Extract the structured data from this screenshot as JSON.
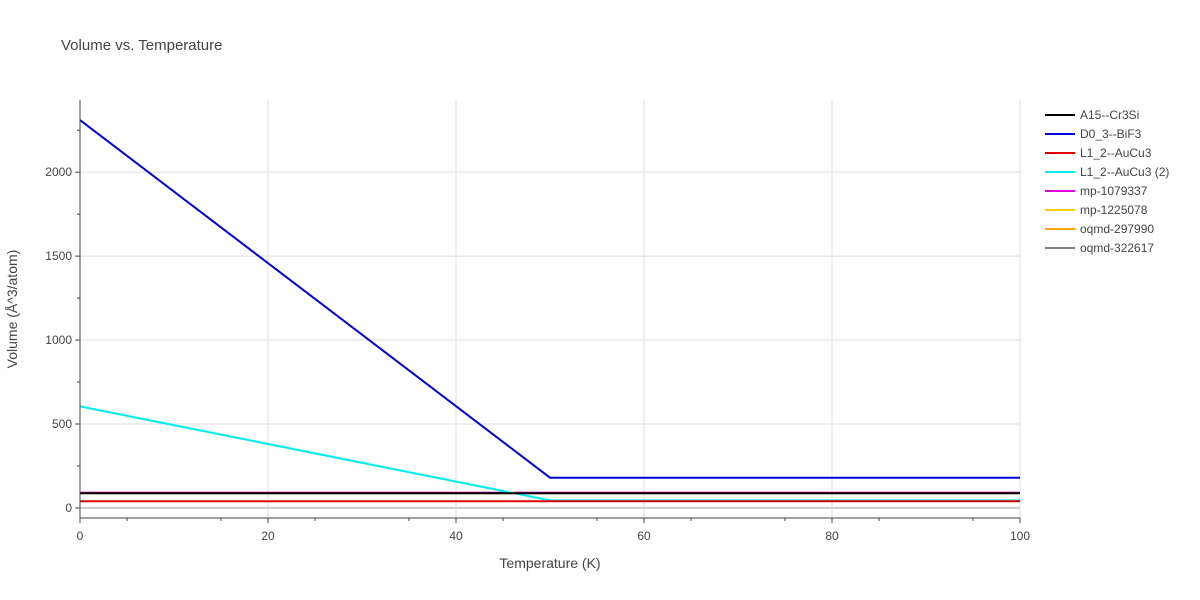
{
  "chart_data": {
    "type": "line",
    "title": "Volume vs. Temperature",
    "xlabel": "Temperature (K)",
    "ylabel": "Volume (Å^3/atom)",
    "xlim": [
      0,
      100
    ],
    "ylim": [
      -60,
      2430
    ],
    "xticks": [
      0,
      20,
      40,
      60,
      80,
      100
    ],
    "yticks": [
      0,
      500,
      1000,
      1500,
      2000
    ],
    "grid": true,
    "legend_position": "top-right",
    "series": [
      {
        "name": "A15--Cr3Si",
        "color": "#000000",
        "x": [
          0,
          100
        ],
        "y": [
          88,
          88
        ]
      },
      {
        "name": "D0_3--BiF3",
        "color": "#0000dd",
        "x": [
          0,
          50,
          100
        ],
        "y": [
          2310,
          180,
          180
        ]
      },
      {
        "name": "L1_2--AuCu3",
        "color": "#dd0000",
        "x": [
          0,
          100
        ],
        "y": [
          40,
          40
        ]
      },
      {
        "name": "L1_2--AuCu3 (2)",
        "color": "#00eeee",
        "x": [
          0,
          50,
          100
        ],
        "y": [
          605,
          45,
          45
        ]
      },
      {
        "name": "mp-1079337",
        "color": "#dd00dd",
        "x": [
          0,
          100
        ],
        "y": [
          90,
          90
        ]
      },
      {
        "name": "mp-1225078",
        "color": "#ffcc00",
        "x": [
          0,
          100
        ],
        "y": [
          90,
          90
        ]
      },
      {
        "name": "oqmd-297990",
        "color": "#ffa500",
        "x": [
          0,
          100
        ],
        "y": [
          88,
          88
        ]
      },
      {
        "name": "oqmd-322617",
        "color": "#808080",
        "x": [
          0,
          100
        ],
        "y": [
          89,
          89
        ]
      }
    ]
  }
}
